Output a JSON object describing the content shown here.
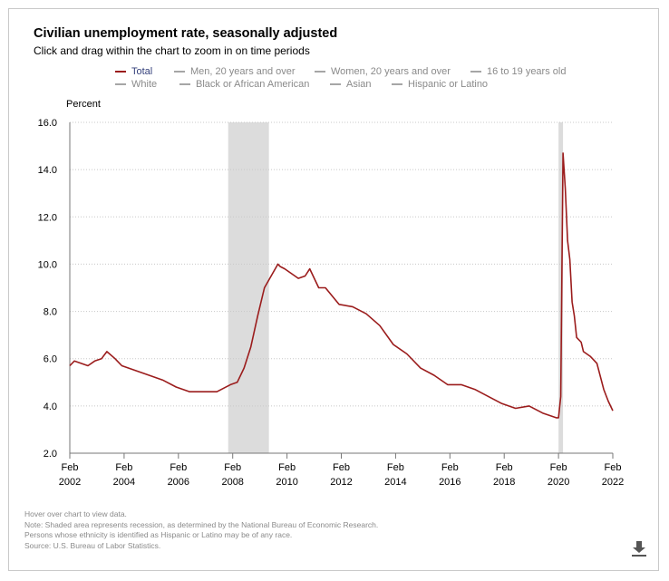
{
  "title": "Civilian unemployment rate, seasonally adjusted",
  "subtitle": "Click and drag within the chart to zoom in on time periods",
  "legend": [
    {
      "label": "Total",
      "active": true
    },
    {
      "label": "Men, 20 years and over",
      "active": false
    },
    {
      "label": "Women, 20 years and over",
      "active": false
    },
    {
      "label": "16 to 19 years old",
      "active": false
    },
    {
      "label": "White",
      "active": false
    },
    {
      "label": "Black or African American",
      "active": false
    },
    {
      "label": "Asian",
      "active": false
    },
    {
      "label": "Hispanic or Latino",
      "active": false
    }
  ],
  "notes": {
    "hover": "Hover over chart to view data.",
    "recession": "Note: Shaded area represents recession, as determined by the National Bureau of Economic Research.",
    "ethnicity": "Persons whose ethnicity is identified as Hispanic or Latino may be of any race.",
    "source": "Source: U.S. Bureau of Labor Statistics."
  },
  "colors": {
    "total_line": "#9b1c1c",
    "recession": "#dcdcdc",
    "grid": "#c8c8c8"
  },
  "download_icon": "download-icon",
  "chart_data": {
    "type": "line",
    "title": "Civilian unemployment rate, seasonally adjusted",
    "ylabel": "Percent",
    "xlabel": "",
    "ylim": [
      2.0,
      16.0
    ],
    "xlim": [
      2002.083,
      2022.083
    ],
    "yticks": [
      "2.0",
      "4.0",
      "6.0",
      "8.0",
      "10.0",
      "12.0",
      "14.0",
      "16.0"
    ],
    "xticks": [
      {
        "month": "Feb",
        "year": "2002"
      },
      {
        "month": "Feb",
        "year": "2004"
      },
      {
        "month": "Feb",
        "year": "2006"
      },
      {
        "month": "Feb",
        "year": "2008"
      },
      {
        "month": "Feb",
        "year": "2010"
      },
      {
        "month": "Feb",
        "year": "2012"
      },
      {
        "month": "Feb",
        "year": "2014"
      },
      {
        "month": "Feb",
        "year": "2016"
      },
      {
        "month": "Feb",
        "year": "2018"
      },
      {
        "month": "Feb",
        "year": "2020"
      },
      {
        "month": "Feb",
        "year": "2022"
      }
    ],
    "recessions": [
      [
        2007.917,
        2009.417
      ],
      [
        2020.083,
        2020.25
      ]
    ],
    "series": [
      {
        "name": "Total",
        "x": [
          2002.083,
          2002.25,
          2002.5,
          2002.75,
          2003.0,
          2003.25,
          2003.45,
          2003.75,
          2004.0,
          2004.25,
          2004.5,
          2004.75,
          2005.0,
          2005.5,
          2006.0,
          2006.5,
          2007.0,
          2007.5,
          2008.0,
          2008.25,
          2008.5,
          2008.75,
          2009.0,
          2009.25,
          2009.5,
          2009.75,
          2009.83,
          2010.0,
          2010.25,
          2010.5,
          2010.75,
          2010.92,
          2011.25,
          2011.5,
          2012.0,
          2012.5,
          2013.0,
          2013.5,
          2014.0,
          2014.5,
          2015.0,
          2015.5,
          2016.0,
          2016.5,
          2017.0,
          2017.5,
          2018.0,
          2018.5,
          2019.0,
          2019.5,
          2020.0,
          2020.083,
          2020.167,
          2020.25,
          2020.333,
          2020.417,
          2020.5,
          2020.583,
          2020.667,
          2020.75,
          2020.917,
          2021.0,
          2021.25,
          2021.5,
          2021.75,
          2021.917,
          2022.083
        ],
        "values": [
          5.7,
          5.9,
          5.8,
          5.7,
          5.9,
          6.0,
          6.3,
          6.0,
          5.7,
          5.6,
          5.5,
          5.4,
          5.3,
          5.1,
          4.8,
          4.6,
          4.6,
          4.6,
          4.9,
          5.0,
          5.6,
          6.5,
          7.8,
          9.0,
          9.5,
          10.0,
          9.9,
          9.8,
          9.6,
          9.4,
          9.5,
          9.8,
          9.0,
          9.0,
          8.3,
          8.2,
          7.9,
          7.4,
          6.6,
          6.2,
          5.6,
          5.3,
          4.9,
          4.9,
          4.7,
          4.4,
          4.1,
          3.9,
          4.0,
          3.7,
          3.5,
          3.5,
          4.4,
          14.7,
          13.2,
          11.0,
          10.2,
          8.4,
          7.8,
          6.9,
          6.7,
          6.3,
          6.1,
          5.8,
          4.7,
          4.2,
          3.8
        ]
      }
    ]
  }
}
